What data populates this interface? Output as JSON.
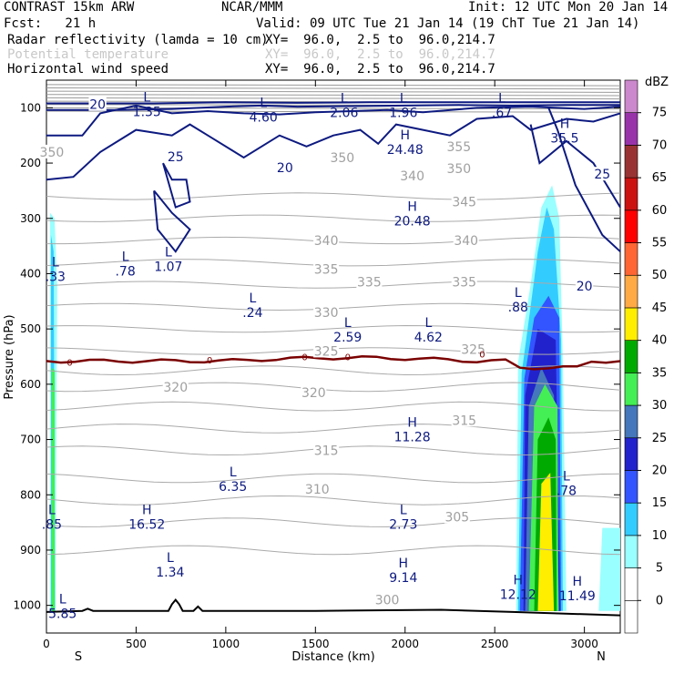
{
  "header": {
    "model": "CONTRAST 15km ARW",
    "center": "NCAR/MMM",
    "init": "Init: 12 UTC Mon 20 Jan 14",
    "fcst": "Fcst:   21 h",
    "valid": "Valid: 09 UTC Tue 21 Jan 14 (19 ChT Tue 21 Jan 14)",
    "fields": [
      {
        "name": "Radar reflectivity (lamda = 10 cm)",
        "xy": "XY=  96.0,  2.5 to  96.0,214.7",
        "faint": false
      },
      {
        "name": "Potential temperature",
        "xy": "XY=  96.0,  2.5 to  96.0,214.7",
        "faint": true
      },
      {
        "name": "Horizontal wind speed",
        "xy": "XY=  96.0,  2.5 to  96.0,214.7",
        "faint": false
      }
    ]
  },
  "chart_data": {
    "type": "cross-section",
    "xlabel": "Distance (km)",
    "ylabel": "Pressure (hPa)",
    "xlim": [
      0,
      3200
    ],
    "ylim": [
      1050,
      50
    ],
    "x_ticks": [
      0,
      500,
      1000,
      1500,
      2000,
      2500,
      3000
    ],
    "y_ticks": [
      100,
      200,
      300,
      400,
      500,
      600,
      700,
      800,
      900,
      1000
    ],
    "x_end_labels": {
      "left": "S",
      "right": "N"
    },
    "colorbar": {
      "unit": "dBZ",
      "levels": [
        0,
        5,
        10,
        15,
        20,
        25,
        30,
        35,
        40,
        45,
        50,
        55,
        60,
        65,
        70,
        75
      ],
      "colors": [
        "#ffffff",
        "#ffffff",
        "#99ffff",
        "#33ccff",
        "#3355ff",
        "#2222cc",
        "#4477bb",
        "#44ee55",
        "#00aa00",
        "#ffee00",
        "#ffaa44",
        "#ff6633",
        "#ff0000",
        "#cc1111",
        "#993333",
        "#9933aa",
        "#cc88cc"
      ]
    },
    "isentrope_labels": [
      {
        "v": "355",
        "x": 2300,
        "p": 170
      },
      {
        "v": "350",
        "x": 1650,
        "p": 190
      },
      {
        "v": "350",
        "x": 2300,
        "p": 210
      },
      {
        "v": "345",
        "x": 2330,
        "p": 270
      },
      {
        "v": "340",
        "x": 1560,
        "p": 340
      },
      {
        "v": "340",
        "x": 2340,
        "p": 340
      },
      {
        "v": "335",
        "x": 1560,
        "p": 392
      },
      {
        "v": "335",
        "x": 1800,
        "p": 415
      },
      {
        "v": "335",
        "x": 2330,
        "p": 415
      },
      {
        "v": "330",
        "x": 1560,
        "p": 470
      },
      {
        "v": "325",
        "x": 1560,
        "p": 540
      },
      {
        "v": "325",
        "x": 2380,
        "p": 537
      },
      {
        "v": "320",
        "x": 720,
        "p": 605
      },
      {
        "v": "320",
        "x": 1490,
        "p": 615
      },
      {
        "v": "315",
        "x": 1560,
        "p": 720
      },
      {
        "v": "315",
        "x": 2330,
        "p": 665
      },
      {
        "v": "310",
        "x": 1510,
        "p": 790
      },
      {
        "v": "305",
        "x": 2290,
        "p": 840
      },
      {
        "v": "300",
        "x": 1900,
        "p": 990
      },
      {
        "v": "350",
        "x": 30,
        "p": 180
      },
      {
        "v": "340",
        "x": 2040,
        "p": 223
      }
    ],
    "wind_labels": [
      {
        "v": "20",
        "x": 285,
        "p": 94
      },
      {
        "v": "25",
        "x": 720,
        "p": 188
      },
      {
        "v": "20",
        "x": 1330,
        "p": 208
      },
      {
        "v": "20",
        "x": 3000,
        "p": 422
      },
      {
        "v": "25",
        "x": 3100,
        "p": 220
      }
    ],
    "extrema": [
      {
        "t": "L",
        "v": "1.35",
        "x": 560,
        "p": 92
      },
      {
        "t": "L",
        "v": "4.60",
        "x": 1210,
        "p": 102
      },
      {
        "t": "L",
        "v": "2.06",
        "x": 1660,
        "p": 94
      },
      {
        "t": "L",
        "v": "1.96",
        "x": 1990,
        "p": 94
      },
      {
        "t": "L",
        "v": ".67",
        "x": 2540,
        "p": 94
      },
      {
        "t": "H",
        "v": "24.48",
        "x": 2000,
        "p": 160
      },
      {
        "t": "H",
        "v": "35.5",
        "x": 2890,
        "p": 140
      },
      {
        "t": "H",
        "v": "20.48",
        "x": 2040,
        "p": 290
      },
      {
        "t": "L",
        "v": ".33",
        "x": 50,
        "p": 390
      },
      {
        "t": "L",
        "v": ".78",
        "x": 440,
        "p": 380
      },
      {
        "t": "L",
        "v": "1.07",
        "x": 680,
        "p": 372
      },
      {
        "t": "L",
        "v": ".24",
        "x": 1150,
        "p": 455
      },
      {
        "t": "L",
        "v": "2.59",
        "x": 1680,
        "p": 500
      },
      {
        "t": "L",
        "v": "4.62",
        "x": 2130,
        "p": 500
      },
      {
        "t": "L",
        "v": ".88",
        "x": 2630,
        "p": 445
      },
      {
        "t": "H",
        "v": "11.28",
        "x": 2040,
        "p": 680
      },
      {
        "t": "L",
        "v": "6.35",
        "x": 1040,
        "p": 770
      },
      {
        "t": "L",
        "v": ".78",
        "x": 2900,
        "p": 777
      },
      {
        "t": "L",
        "v": ".85",
        "x": 30,
        "p": 838
      },
      {
        "t": "H",
        "v": "16.52",
        "x": 560,
        "p": 838
      },
      {
        "t": "L",
        "v": "2.73",
        "x": 1990,
        "p": 838
      },
      {
        "t": "L",
        "v": "1.34",
        "x": 690,
        "p": 925
      },
      {
        "t": "H",
        "v": "9.14",
        "x": 1990,
        "p": 935
      },
      {
        "t": "H",
        "v": "12.12",
        "x": 2630,
        "p": 965
      },
      {
        "t": "H",
        "v": "11.49",
        "x": 2960,
        "p": 968
      },
      {
        "t": "L",
        "v": "5.85",
        "x": 90,
        "p": 1000
      }
    ],
    "zero_contour_labels": [
      {
        "v": "0",
        "x": 130,
        "p": 560
      },
      {
        "v": "0",
        "x": 910,
        "p": 556
      },
      {
        "v": "0",
        "x": 1440,
        "p": 550
      },
      {
        "v": "0",
        "x": 1680,
        "p": 550
      },
      {
        "v": "0",
        "x": 2430,
        "p": 545
      }
    ],
    "terrain": [
      [
        0,
        1012
      ],
      [
        200,
        1010
      ],
      [
        230,
        1006
      ],
      [
        260,
        1010
      ],
      [
        680,
        1010
      ],
      [
        700,
        998
      ],
      [
        720,
        990
      ],
      [
        740,
        998
      ],
      [
        760,
        1010
      ],
      [
        820,
        1010
      ],
      [
        845,
        1002
      ],
      [
        870,
        1010
      ],
      [
        1500,
        1010
      ],
      [
        2200,
        1008
      ],
      [
        2600,
        1012
      ],
      [
        3200,
        1018
      ]
    ]
  }
}
